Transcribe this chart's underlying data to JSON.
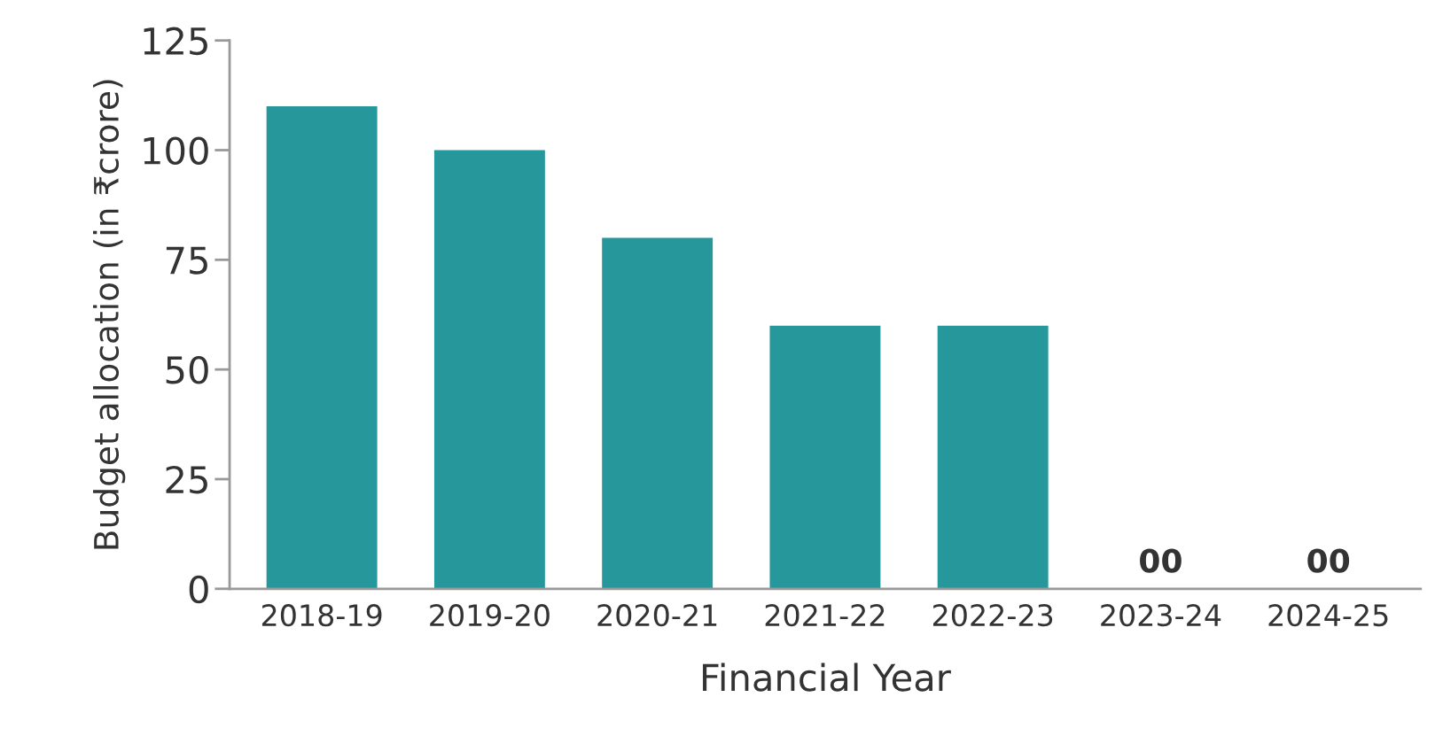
{
  "chart_data": {
    "type": "bar",
    "xlabel": "Financial Year",
    "ylabel": "Budget allocation (in ₹crore)",
    "categories": [
      "2018-19",
      "2019-20",
      "2020-21",
      "2021-22",
      "2022-23",
      "2023-24",
      "2024-25"
    ],
    "values": [
      110,
      100,
      80,
      60,
      60,
      0,
      0
    ],
    "value_labels": [
      null,
      null,
      null,
      null,
      null,
      "00",
      "00"
    ],
    "color": "#26979b",
    "ylim": [
      0,
      125
    ],
    "yticks": [
      0,
      25,
      50,
      75,
      100,
      125
    ],
    "grid": false
  }
}
